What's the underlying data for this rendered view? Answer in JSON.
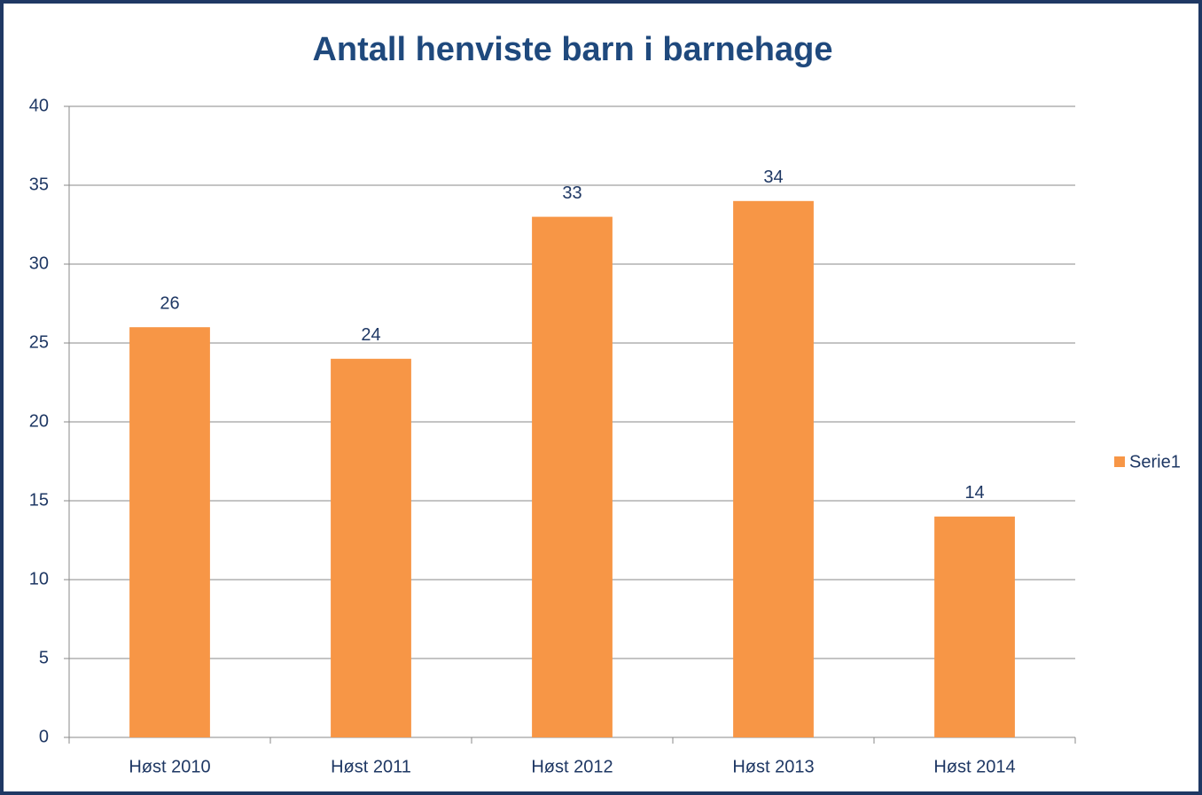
{
  "chart_data": {
    "type": "bar",
    "title": "Antall henviste barn i barnehage",
    "categories": [
      "Høst 2010",
      "Høst 2011",
      "Høst 2012",
      "Høst 2013",
      "Høst 2014"
    ],
    "series": [
      {
        "name": "Serie1",
        "color": "#f79646",
        "values": [
          26,
          24,
          33,
          34,
          14
        ]
      }
    ],
    "ylim": [
      0,
      40
    ],
    "yticks": [
      0,
      5,
      10,
      15,
      20,
      25,
      30,
      35,
      40
    ],
    "grid": true,
    "legend": "right"
  }
}
